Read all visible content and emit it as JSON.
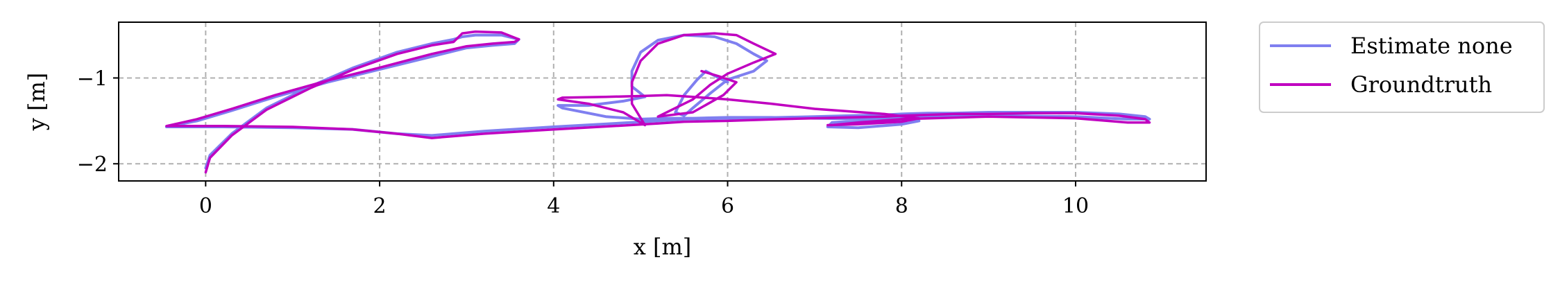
{
  "chart_data": {
    "type": "line",
    "xlabel": "x [m]",
    "ylabel": "y [m]",
    "xlim": [
      -1.0,
      11.5
    ],
    "ylim": [
      -2.2,
      -0.35
    ],
    "xticks": [
      0,
      2,
      4,
      6,
      8,
      10
    ],
    "xtick_labels": [
      "0",
      "2",
      "4",
      "6",
      "8",
      "10"
    ],
    "yticks": [
      -2,
      -1
    ],
    "ytick_labels": [
      "−2",
      "−1"
    ],
    "grid": true,
    "legend_position": "outside-right",
    "series": [
      {
        "name": "Estimate none",
        "color": "#7f7ff0",
        "x": [
          0.0,
          0.05,
          0.3,
          0.7,
          1.2,
          1.7,
          2.2,
          2.6,
          2.85,
          2.95,
          3.1,
          3.4,
          3.6,
          3.55,
          3.3,
          3.0,
          2.6,
          2.0,
          1.4,
          0.8,
          0.3,
          -0.1,
          -0.45,
          -0.3,
          0.2,
          1.0,
          1.7,
          2.2,
          2.6,
          3.2,
          4.0,
          4.7,
          5.2,
          5.5,
          6.0,
          6.6,
          7.0,
          7.4,
          7.8,
          8.0,
          8.3,
          8.6,
          9.0,
          9.5,
          10.0,
          10.5,
          10.8,
          10.85,
          10.6,
          10.0,
          9.0,
          8.0,
          7.5,
          7.2,
          7.15,
          7.5,
          8.0,
          8.2,
          7.8,
          7.0,
          6.5,
          6.0,
          5.6,
          5.3,
          5.0,
          4.6,
          4.1,
          4.05,
          4.4,
          4.8,
          5.05,
          4.9,
          4.9,
          5.0,
          5.2,
          5.5,
          5.85,
          6.1,
          6.3,
          6.45,
          6.3,
          6.0,
          5.8,
          5.6,
          5.5,
          5.4,
          5.5,
          5.65,
          5.75,
          5.9,
          6.0
        ],
        "y": [
          -2.05,
          -1.9,
          -1.65,
          -1.35,
          -1.1,
          -0.88,
          -0.7,
          -0.6,
          -0.55,
          -0.52,
          -0.5,
          -0.5,
          -0.55,
          -0.6,
          -0.62,
          -0.65,
          -0.75,
          -0.9,
          -1.05,
          -1.22,
          -1.38,
          -1.5,
          -1.57,
          -1.57,
          -1.57,
          -1.58,
          -1.6,
          -1.65,
          -1.67,
          -1.62,
          -1.57,
          -1.53,
          -1.5,
          -1.48,
          -1.47,
          -1.46,
          -1.45,
          -1.44,
          -1.43,
          -1.42,
          -1.41,
          -1.41,
          -1.4,
          -1.4,
          -1.4,
          -1.42,
          -1.45,
          -1.48,
          -1.48,
          -1.45,
          -1.44,
          -1.46,
          -1.5,
          -1.52,
          -1.57,
          -1.58,
          -1.54,
          -1.5,
          -1.48,
          -1.47,
          -1.46,
          -1.46,
          -1.47,
          -1.47,
          -1.48,
          -1.45,
          -1.35,
          -1.32,
          -1.32,
          -1.27,
          -1.22,
          -1.1,
          -0.92,
          -0.7,
          -0.56,
          -0.5,
          -0.52,
          -0.6,
          -0.72,
          -0.8,
          -0.92,
          -1.02,
          -1.18,
          -1.35,
          -1.44,
          -1.4,
          -1.2,
          -1.02,
          -0.92,
          -1.0,
          -1.05
        ]
      },
      {
        "name": "Groundtruth",
        "color": "#c000c0",
        "x": [
          0.0,
          0.05,
          0.3,
          0.7,
          1.2,
          1.7,
          2.2,
          2.6,
          2.85,
          2.95,
          3.1,
          3.4,
          3.6,
          3.55,
          3.3,
          3.0,
          2.6,
          2.0,
          1.4,
          0.8,
          0.3,
          -0.1,
          -0.45,
          -0.3,
          0.2,
          1.0,
          1.7,
          2.2,
          2.6,
          3.2,
          4.0,
          4.7,
          5.2,
          5.5,
          6.0,
          6.6,
          7.0,
          7.4,
          7.8,
          8.0,
          8.3,
          8.6,
          9.0,
          9.5,
          10.0,
          10.5,
          10.8,
          10.85,
          10.6,
          10.0,
          9.0,
          8.0,
          7.5,
          7.2,
          7.15,
          7.5,
          8.0,
          8.2,
          7.8,
          7.0,
          6.5,
          6.0,
          5.6,
          5.3,
          5.0,
          4.6,
          4.1,
          4.05,
          4.4,
          4.8,
          5.05,
          4.9,
          4.9,
          5.0,
          5.2,
          5.5,
          5.85,
          6.1,
          6.3,
          6.55,
          6.3,
          6.0,
          5.8,
          5.6,
          5.4,
          5.2,
          5.6,
          5.95,
          6.1,
          5.9,
          5.7
        ],
        "y": [
          -2.1,
          -1.93,
          -1.67,
          -1.37,
          -1.12,
          -0.9,
          -0.72,
          -0.62,
          -0.58,
          -0.48,
          -0.46,
          -0.47,
          -0.55,
          -0.58,
          -0.6,
          -0.63,
          -0.72,
          -0.88,
          -1.03,
          -1.2,
          -1.36,
          -1.48,
          -1.56,
          -1.56,
          -1.56,
          -1.57,
          -1.6,
          -1.65,
          -1.7,
          -1.65,
          -1.6,
          -1.56,
          -1.53,
          -1.51,
          -1.5,
          -1.48,
          -1.47,
          -1.46,
          -1.45,
          -1.44,
          -1.43,
          -1.42,
          -1.42,
          -1.41,
          -1.41,
          -1.44,
          -1.48,
          -1.52,
          -1.52,
          -1.47,
          -1.45,
          -1.48,
          -1.52,
          -1.55,
          -1.55,
          -1.54,
          -1.51,
          -1.47,
          -1.42,
          -1.36,
          -1.3,
          -1.25,
          -1.22,
          -1.2,
          -1.21,
          -1.22,
          -1.23,
          -1.25,
          -1.3,
          -1.4,
          -1.55,
          -1.3,
          -1.05,
          -0.8,
          -0.6,
          -0.5,
          -0.48,
          -0.5,
          -0.6,
          -0.72,
          -0.82,
          -0.95,
          -1.08,
          -1.25,
          -1.35,
          -1.45,
          -1.4,
          -1.2,
          -1.05,
          -0.98,
          -0.92
        ]
      }
    ]
  }
}
